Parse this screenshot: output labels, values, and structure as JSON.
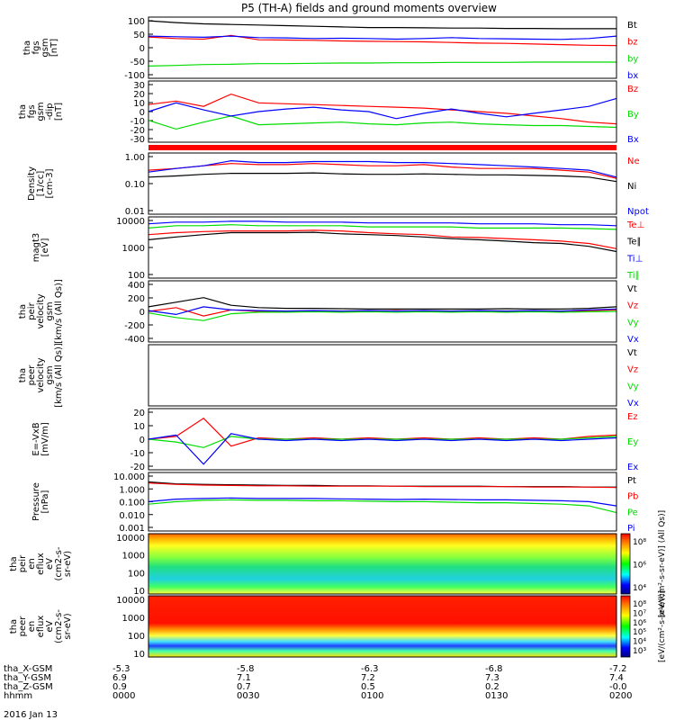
{
  "title": "P5 (TH-A) fields and ground moments overview",
  "date": "2016 Jan 13",
  "colors": {
    "black": "#000000",
    "red": "#ff0000",
    "green": "#00dd00",
    "blue": "#0000ff"
  },
  "ephemeris": {
    "rows": [
      {
        "label": "tha_X-GSM",
        "values": [
          "-5.3",
          "-5.8",
          "-6.3",
          "-6.8",
          "-7.2"
        ]
      },
      {
        "label": "tha_Y-GSM",
        "values": [
          "6.9",
          "7.1",
          "7.2",
          "7.3",
          "7.4"
        ]
      },
      {
        "label": "tha_Z-GSM",
        "values": [
          "0.9",
          "0.7",
          "0.5",
          "0.2",
          "-0.0"
        ]
      },
      {
        "label": "hhmm",
        "values": [
          "0000",
          "0030",
          "0100",
          "0130",
          "0200"
        ]
      }
    ]
  },
  "chart_data": [
    {
      "id": "p1",
      "type": "line",
      "ylabel": [
        "tha",
        "fgs",
        "gsm",
        "[nT]"
      ],
      "yticks": [
        "100",
        "50",
        "0",
        "-50",
        "-100"
      ],
      "series": [
        {
          "name": "Bt",
          "color": "#000000",
          "values": [
            88,
            82,
            78,
            76,
            74,
            72,
            70,
            68,
            66,
            66,
            65,
            64,
            64,
            63,
            63,
            62,
            62,
            62
          ]
        },
        {
          "name": "bz",
          "color": "#ff0000",
          "values": [
            35,
            30,
            28,
            40,
            26,
            25,
            24,
            22,
            21,
            20,
            19,
            17,
            15,
            14,
            12,
            10,
            8,
            7
          ]
        },
        {
          "name": "by",
          "color": "#00dd00",
          "values": [
            -60,
            -58,
            -55,
            -54,
            -52,
            -52,
            -51,
            -50,
            -50,
            -49,
            -49,
            -48,
            -48,
            -48,
            -47,
            -47,
            -47,
            -47
          ]
        },
        {
          "name": "bx",
          "color": "#0000ff",
          "values": [
            38,
            36,
            34,
            38,
            33,
            32,
            30,
            31,
            30,
            28,
            30,
            33,
            30,
            29,
            28,
            27,
            30,
            38
          ]
        }
      ]
    },
    {
      "id": "p2",
      "type": "line",
      "ylabel": [
        "tha",
        "fgs",
        "gsm",
        "-dip",
        "[nT]"
      ],
      "yticks": [
        "30",
        "20",
        "10",
        "0",
        "-10",
        "-20",
        "-30"
      ],
      "series": [
        {
          "name": "Bz",
          "color": "#ff0000",
          "values": [
            8,
            12,
            6,
            20,
            10,
            9,
            8,
            7,
            6,
            5,
            4,
            2,
            0,
            -2,
            -5,
            -8,
            -12,
            -14
          ]
        },
        {
          "name": "By",
          "color": "#00dd00",
          "values": [
            -10,
            -20,
            -12,
            -5,
            -15,
            -14,
            -13,
            -12,
            -14,
            -15,
            -13,
            -12,
            -14,
            -15,
            -16,
            -16,
            -17,
            -18
          ]
        },
        {
          "name": "Bx",
          "color": "#0000ff",
          "values": [
            0,
            10,
            2,
            -5,
            0,
            3,
            5,
            2,
            0,
            -8,
            -2,
            3,
            -2,
            -6,
            -2,
            2,
            6,
            15
          ]
        }
      ]
    },
    {
      "id": "p3",
      "type": "line",
      "ylabel": [
        "Density",
        "[1/cc]",
        "[cm-3]"
      ],
      "yticks": [
        "1.00",
        "0.10",
        "0.01"
      ],
      "series": [
        {
          "name": "Ne",
          "color": "#ff0000",
          "values": [
            0.35,
            0.4,
            0.5,
            0.6,
            0.55,
            0.55,
            0.6,
            0.55,
            0.5,
            0.5,
            0.55,
            0.45,
            0.4,
            0.4,
            0.4,
            0.35,
            0.3,
            0.18
          ]
        },
        {
          "name": "Ni",
          "color": "#000000",
          "values": [
            0.2,
            0.22,
            0.25,
            0.27,
            0.27,
            0.27,
            0.28,
            0.26,
            0.25,
            0.25,
            0.26,
            0.25,
            0.24,
            0.24,
            0.23,
            0.22,
            0.2,
            0.14
          ]
        },
        {
          "name": "Npot",
          "color": "#0000ff",
          "values": [
            0.3,
            0.4,
            0.5,
            0.75,
            0.65,
            0.65,
            0.7,
            0.7,
            0.7,
            0.65,
            0.65,
            0.6,
            0.55,
            0.5,
            0.45,
            0.4,
            0.35,
            0.2
          ]
        }
      ]
    },
    {
      "id": "p4",
      "type": "line",
      "ylabel": [
        "magt3",
        "[eV]"
      ],
      "yticks": [
        "10000",
        "1000",
        "100"
      ],
      "series": [
        {
          "name": "Te⊥",
          "color": "#ff0000",
          "values": [
            3000,
            3500,
            3800,
            4000,
            4000,
            4000,
            4200,
            4000,
            3500,
            3200,
            3000,
            2500,
            2400,
            2200,
            2000,
            1800,
            1500,
            1000
          ]
        },
        {
          "name": "Te∥",
          "color": "#000000",
          "values": [
            2000,
            2500,
            3000,
            3500,
            3500,
            3500,
            3600,
            3200,
            3000,
            2800,
            2500,
            2200,
            2000,
            1800,
            1600,
            1500,
            1200,
            800
          ]
        },
        {
          "name": "Ti⊥",
          "color": "#0000ff",
          "values": [
            7000,
            8000,
            8000,
            8500,
            8500,
            8000,
            8000,
            8000,
            7500,
            7500,
            7500,
            7500,
            7000,
            7000,
            7000,
            6500,
            6500,
            6000
          ]
        },
        {
          "name": "Ti∥",
          "color": "#00dd00",
          "values": [
            5000,
            6000,
            6000,
            6500,
            6000,
            6000,
            6000,
            6000,
            5500,
            5500,
            5500,
            5500,
            5000,
            5000,
            5000,
            5000,
            4800,
            4500
          ]
        }
      ]
    },
    {
      "id": "p5",
      "type": "line",
      "ylabel": [
        "tha",
        "peir",
        "velocity",
        "gsm",
        "[km/s (All Qs)]"
      ],
      "yticks": [
        "400",
        "200",
        "0",
        "-200",
        "-400"
      ],
      "series": [
        {
          "name": "Vt",
          "color": "#000000",
          "values": [
            60,
            120,
            180,
            80,
            50,
            40,
            40,
            35,
            30,
            30,
            30,
            30,
            30,
            35,
            30,
            30,
            40,
            60
          ]
        },
        {
          "name": "Vz",
          "color": "#ff0000",
          "values": [
            0,
            50,
            -60,
            20,
            0,
            5,
            0,
            5,
            0,
            10,
            0,
            5,
            0,
            0,
            5,
            0,
            10,
            20
          ]
        },
        {
          "name": "Vy",
          "color": "#00dd00",
          "values": [
            -20,
            -80,
            -120,
            -30,
            -10,
            -10,
            -5,
            -10,
            -5,
            -10,
            -5,
            -10,
            -5,
            -10,
            -5,
            -10,
            -5,
            0
          ]
        },
        {
          "name": "Vx",
          "color": "#0000ff",
          "values": [
            10,
            -40,
            60,
            20,
            10,
            5,
            10,
            5,
            10,
            5,
            10,
            5,
            10,
            5,
            10,
            5,
            20,
            30
          ]
        }
      ]
    },
    {
      "id": "p6",
      "type": "line",
      "ylabel": [
        "tha",
        "peer",
        "velocity",
        "gsm",
        "[km/s (All Qs)]"
      ],
      "yticks": [],
      "series": [
        {
          "name": "Vt",
          "color": "#000000",
          "values": []
        },
        {
          "name": "Vz",
          "color": "#ff0000",
          "values": []
        },
        {
          "name": "Vy",
          "color": "#00dd00",
          "values": []
        },
        {
          "name": "Vx",
          "color": "#0000ff",
          "values": []
        }
      ]
    },
    {
      "id": "p7",
      "type": "line",
      "ylabel": [
        "E=-VxB",
        "[mV/m]"
      ],
      "yticks": [
        "20",
        "10",
        "0",
        "-10",
        "-20"
      ],
      "series": [
        {
          "name": "Ez",
          "color": "#ff0000",
          "values": [
            0,
            2,
            15,
            -5,
            1,
            0,
            1,
            0,
            1,
            0,
            1,
            0,
            1,
            0,
            1,
            0,
            2,
            3
          ]
        },
        {
          "name": "Ey",
          "color": "#00dd00",
          "values": [
            0,
            -2,
            -6,
            2,
            0,
            0,
            0,
            0,
            0,
            0,
            0,
            0,
            0,
            0,
            0,
            0,
            1,
            2
          ]
        },
        {
          "name": "Ex",
          "color": "#0000ff",
          "values": [
            0,
            3,
            -18,
            4,
            0,
            -1,
            0,
            -1,
            0,
            -1,
            0,
            -1,
            0,
            -1,
            0,
            -1,
            0,
            1
          ]
        }
      ]
    },
    {
      "id": "p8",
      "type": "line",
      "ylabel": [
        "Pressure",
        "[nPa]"
      ],
      "yticks": [
        "10.000",
        "1.000",
        "0.100",
        "0.010",
        "0.001"
      ],
      "series": [
        {
          "name": "Pt",
          "color": "#000000",
          "values": [
            3,
            2.2,
            2.0,
            1.9,
            1.8,
            1.7,
            1.7,
            1.6,
            1.6,
            1.5,
            1.5,
            1.5,
            1.5,
            1.4,
            1.4,
            1.4,
            1.3,
            1.3
          ]
        },
        {
          "name": "Pb",
          "color": "#ff0000",
          "values": [
            2.5,
            2.0,
            1.8,
            1.7,
            1.6,
            1.6,
            1.5,
            1.5,
            1.5,
            1.5,
            1.4,
            1.4,
            1.4,
            1.4,
            1.3,
            1.3,
            1.3,
            1.2
          ]
        },
        {
          "name": "Pe",
          "color": "#00dd00",
          "values": [
            0.08,
            0.12,
            0.15,
            0.16,
            0.15,
            0.15,
            0.14,
            0.14,
            0.13,
            0.12,
            0.12,
            0.11,
            0.1,
            0.1,
            0.09,
            0.08,
            0.06,
            0.02
          ]
        },
        {
          "name": "Pi",
          "color": "#0000ff",
          "values": [
            0.12,
            0.18,
            0.2,
            0.22,
            0.2,
            0.2,
            0.2,
            0.19,
            0.18,
            0.17,
            0.18,
            0.17,
            0.16,
            0.16,
            0.15,
            0.14,
            0.12,
            0.06
          ]
        }
      ]
    },
    {
      "id": "p9",
      "type": "heatmap",
      "ylabel": [
        "tha",
        "peir",
        "en",
        "eflux",
        "eV",
        "(cm2-s-",
        "sr-eV)"
      ],
      "yticks": [
        "10000",
        "1000",
        "100",
        "10"
      ],
      "colorbar_ticks": [
        "10⁸",
        "10⁶",
        "10⁴"
      ],
      "colorbar_label": "[eV/(cm²-s-sr-eV)] (All Qs)]"
    },
    {
      "id": "p10",
      "type": "heatmap",
      "ylabel": [
        "tha",
        "peer",
        "en",
        "eflux",
        "eV",
        "(cm2-s-",
        "sr-eV)"
      ],
      "yticks": [
        "10000",
        "1000",
        "100",
        "10"
      ],
      "colorbar_ticks": [
        "10⁸",
        "10⁷",
        "10⁶",
        "10⁵",
        "10⁴",
        "10³"
      ],
      "colorbar_label": "[eV/(cm²-s-sr-eV)]"
    }
  ]
}
